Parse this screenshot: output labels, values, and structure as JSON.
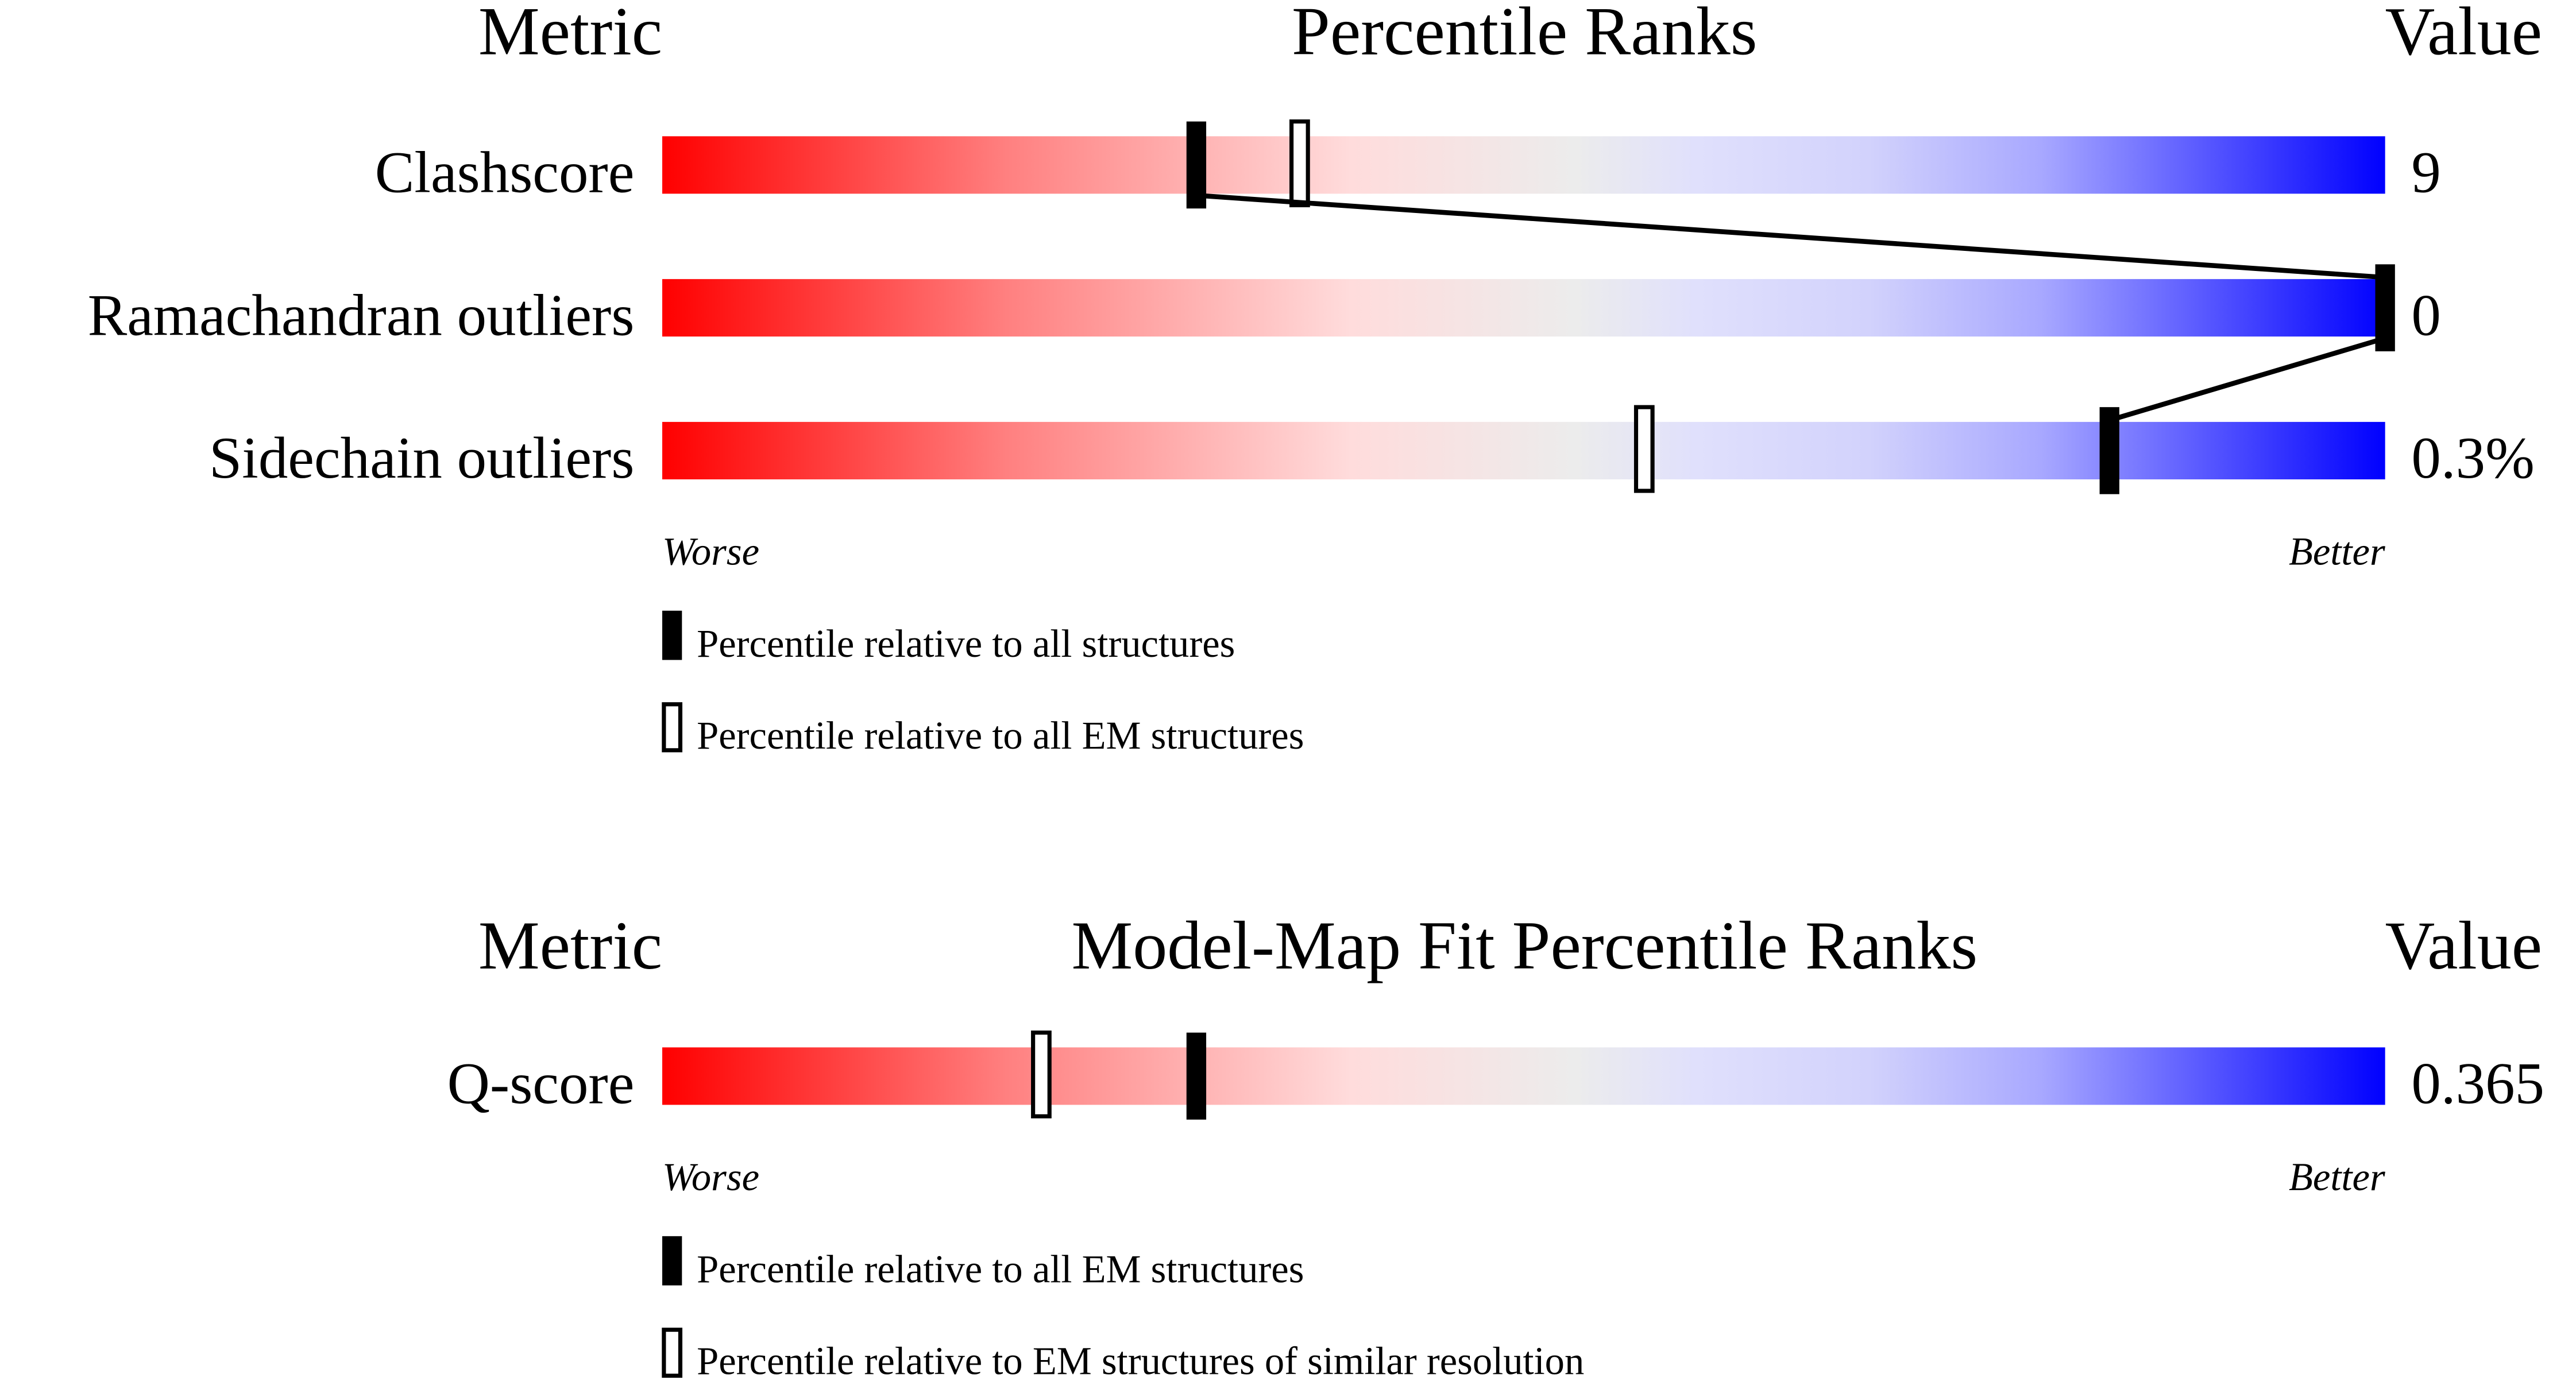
{
  "chart_data": [
    {
      "type": "percentile-slider",
      "headers": {
        "metric": "Metric",
        "title": "Percentile Ranks",
        "value": "Value"
      },
      "xlim": [
        0,
        100
      ],
      "worse_label": "Worse",
      "better_label": "Better",
      "rows": [
        {
          "metric": "Clashscore",
          "value": "9",
          "percentile_all": 31,
          "percentile_em": 37
        },
        {
          "metric": "Ramachandran outliers",
          "value": "0",
          "percentile_all": 100,
          "percentile_em": null
        },
        {
          "metric": "Sidechain outliers",
          "value": "0.3%",
          "percentile_all": 84,
          "percentile_em": 57
        }
      ],
      "legend": {
        "filled": "Percentile relative to all structures",
        "open": "Percentile relative to all EM structures"
      }
    },
    {
      "type": "percentile-slider",
      "headers": {
        "metric": "Metric",
        "title": "Model-Map Fit Percentile Ranks",
        "value": "Value"
      },
      "xlim": [
        0,
        100
      ],
      "worse_label": "Worse",
      "better_label": "Better",
      "rows": [
        {
          "metric": "Q-score",
          "value": "0.365",
          "percentile_all": 31,
          "percentile_em": 22
        }
      ],
      "legend": {
        "filled": "Percentile relative to all EM structures",
        "open": "Percentile relative to EM structures of similar resolution"
      }
    }
  ],
  "colors": {
    "worse": "#ff0000",
    "neutral": "#eeeeee",
    "better": "#0000ff",
    "marker": "#000000"
  }
}
